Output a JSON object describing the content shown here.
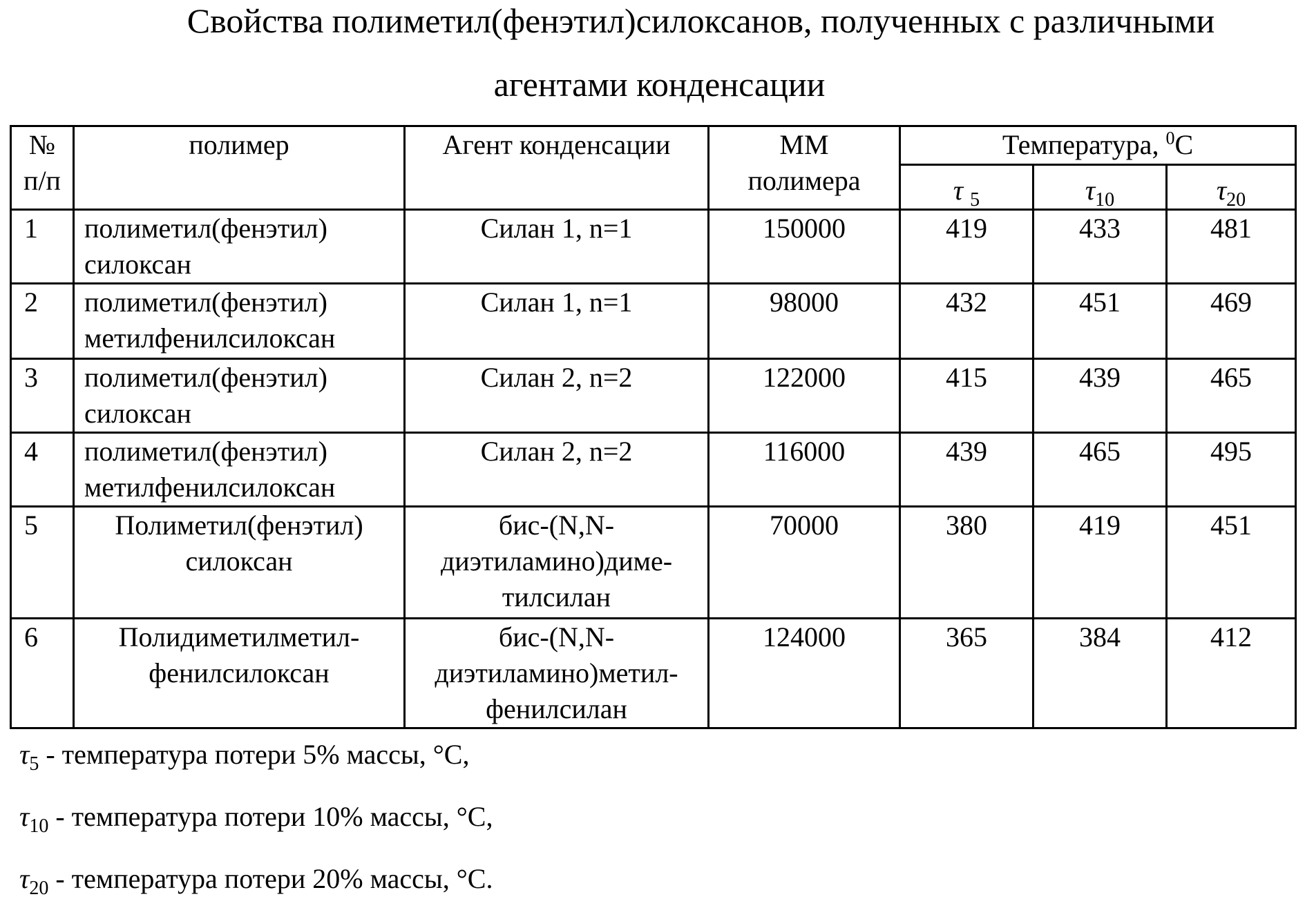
{
  "title": {
    "line1": "Свойства полиметил(фенэтил)силоксанов, полученных с различными",
    "line2": "агентами конденсации"
  },
  "table": {
    "headers": {
      "num_line1": "№",
      "num_line2": "п/п",
      "polymer": "полимер",
      "agent": "Агент конденсации",
      "mm_line1": "ММ",
      "mm_line2": "полимера",
      "temp": "Температура, ",
      "temp_unit_sup": "0",
      "temp_unit": "С",
      "tau": "τ",
      "t5": "5",
      "t10": "10",
      "t20": "20"
    },
    "rows": [
      {
        "n": "1",
        "polymer": [
          "полиметил(фенэтил)",
          "силоксан"
        ],
        "agent": [
          "Силан 1, n=1"
        ],
        "mm": "150000",
        "t5": "419",
        "t10": "433",
        "t20": "481",
        "align": "l"
      },
      {
        "n": "2",
        "polymer": [
          "полиметил(фенэтил)",
          "метилфенилсилоксан"
        ],
        "agent": [
          "Силан 1, n=1"
        ],
        "mm": "98000",
        "t5": "432",
        "t10": "451",
        "t20": "469",
        "align": "l"
      },
      {
        "n": "3",
        "polymer": [
          "полиметил(фенэтил)",
          "силоксан"
        ],
        "agent": [
          "Силан 2, n=2"
        ],
        "mm": "122000",
        "t5": "415",
        "t10": "439",
        "t20": "465",
        "align": "l"
      },
      {
        "n": "4",
        "polymer": [
          "полиметил(фенэтил)",
          "метилфенилсилоксан"
        ],
        "agent": [
          "Силан 2, n=2"
        ],
        "mm": "116000",
        "t5": "439",
        "t10": "465",
        "t20": "495",
        "align": "l"
      },
      {
        "n": "5",
        "polymer": [
          "Полиметил(фенэтил)",
          "силоксан"
        ],
        "agent": [
          "бис-(N,N-",
          "диэтиламино)диме-",
          "тилсилан"
        ],
        "mm": "70000",
        "t5": "380",
        "t10": "419",
        "t20": "451",
        "align": "c"
      },
      {
        "n": "6",
        "polymer": [
          "Полидиметилметил-",
          "фенилсилоксан"
        ],
        "agent": [
          "бис-(N,N-",
          "диэтиламино)метил-",
          "фенилсилан"
        ],
        "mm": "124000",
        "t5": "365",
        "t10": "384",
        "t20": "412",
        "align": "c"
      }
    ]
  },
  "footnotes": [
    {
      "sub": "5",
      "text": " - температура потери 5% массы, °С,"
    },
    {
      "sub": "10",
      "text": " - температура потери 10% массы, °С,"
    },
    {
      "sub": "20",
      "text": " - температура потери 20% массы, °С."
    }
  ]
}
